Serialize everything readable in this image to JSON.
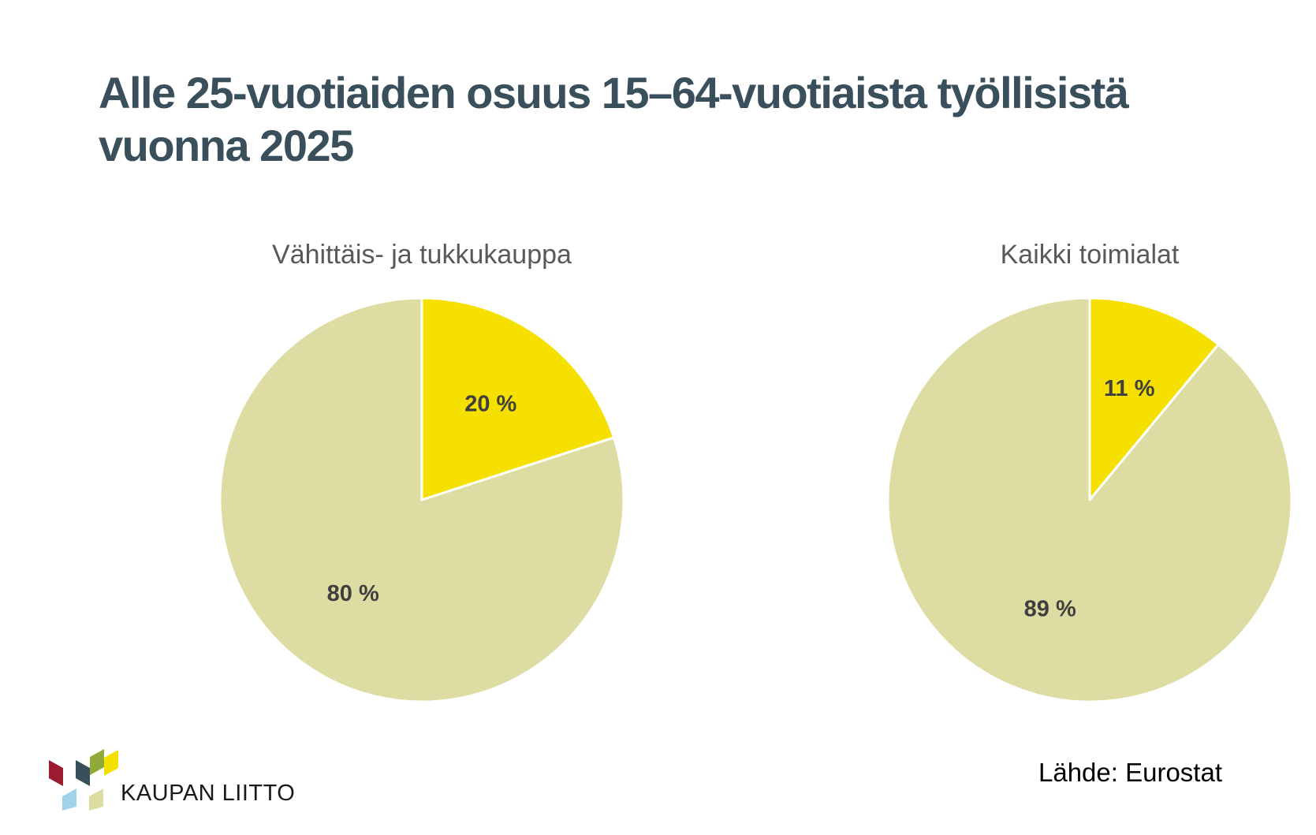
{
  "title": {
    "line1": "Alle 25-vuotiaiden osuus 15–64-vuotiaista työllisistä",
    "line2": "vuonna 2025"
  },
  "chart_data": [
    {
      "type": "pie",
      "title": "Vähittäis- ja tukkukauppa",
      "start_angle": "12 o'clock, clockwise",
      "slices": [
        {
          "label": "20 %",
          "value": 20,
          "color": "#f5e000"
        },
        {
          "label": "80 %",
          "value": 80,
          "color": "#dddda3"
        }
      ]
    },
    {
      "type": "pie",
      "title": "Kaikki toimialat",
      "start_angle": "12 o'clock, clockwise",
      "slices": [
        {
          "label": "11 %",
          "value": 11,
          "color": "#f5e000"
        },
        {
          "label": "89 %",
          "value": 89,
          "color": "#dddda3"
        }
      ]
    }
  ],
  "source": "Lähde: Eurostat",
  "logo": {
    "text": "KAUPAN LIITTO",
    "icon": "kaupan-liitto-logo-mark",
    "colors": [
      "#9b1b30",
      "#3a4f5c",
      "#8fa93b",
      "#f5e000",
      "#9fd3ea",
      "#dddda3"
    ]
  }
}
